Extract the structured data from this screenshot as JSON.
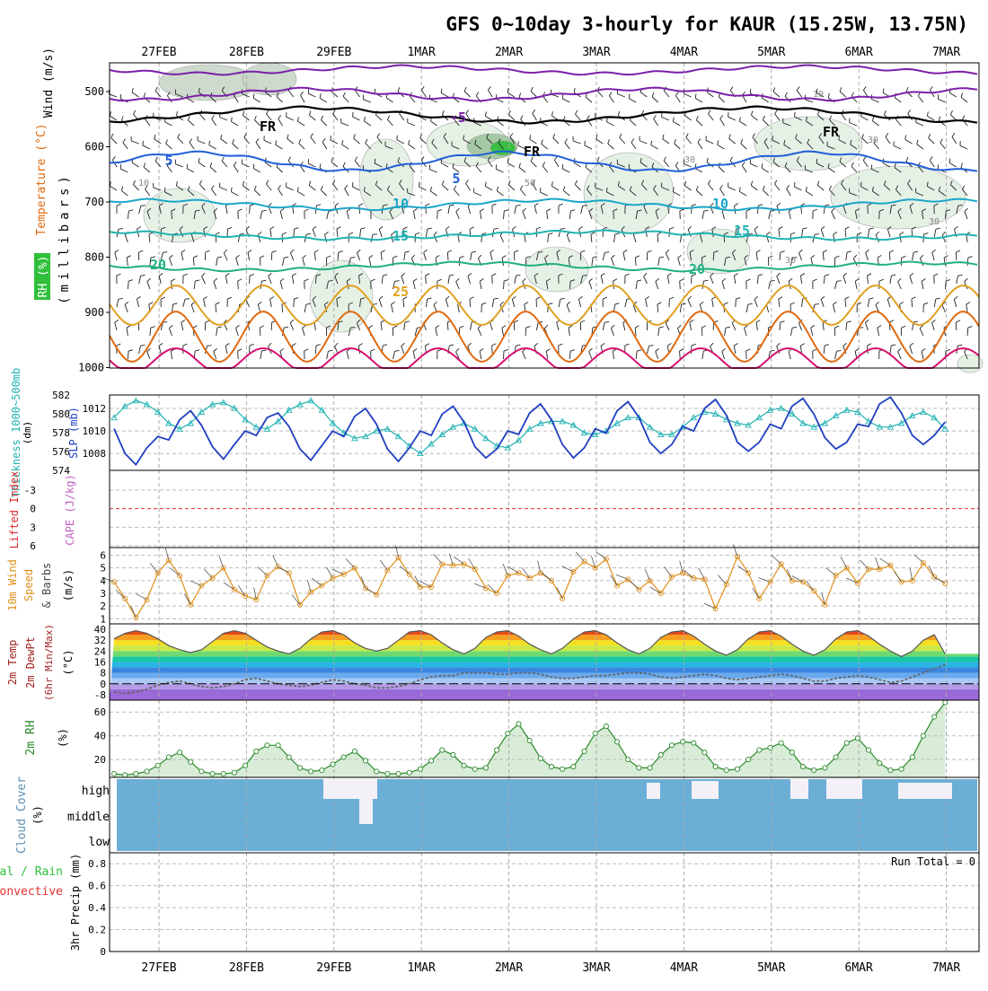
{
  "title": "GFS 0~10day 3-hourly for KAUR (15.25W, 13.75N)",
  "dates": [
    "27FEB",
    "28FEB",
    "29FEB",
    "1MAR",
    "2MAR",
    "3MAR",
    "4MAR",
    "5MAR",
    "6MAR",
    "7MAR"
  ],
  "colors": {
    "rh_green": "#2fbf3a",
    "sounding_temp_cold": "#7a1fa8",
    "sounding_temp_cool": "#1f5fd8",
    "sounding_temp_mild": "#1aa6c8",
    "sounding_temp_warm": "#e0a020",
    "sounding_temp_hot": "#e06a10",
    "sounding_temp_extreme": "#d81070",
    "slp": "#1f3fc0",
    "thickness": "#20b2b2",
    "lifted_index": "#e03030",
    "cape": "#c060c0",
    "wind10m": "#e0901a",
    "rh2m": "#2a8a2a",
    "cloud": "#6baed6",
    "precip_total": "#2fbf3a",
    "precip_conv": "#e03030"
  },
  "panels": {
    "sounding": {
      "ylabel_wind": "Wind (m/s)",
      "ylabel_temp": "Temperature (°C)",
      "ylabel_rh": "RH (%)",
      "ylabel_mb": "(millibars)",
      "yticks": [
        "500",
        "600",
        "700",
        "800",
        "900",
        "1000"
      ],
      "isotherm_labels": [
        {
          "text": "-5",
          "color": "#7a1fa8"
        },
        {
          "text": "FR",
          "color": "#000000"
        },
        {
          "text": "FR",
          "color": "#000000"
        },
        {
          "text": "FR",
          "color": "#000000"
        },
        {
          "text": "5",
          "color": "#1f5fd8"
        },
        {
          "text": "5",
          "color": "#1f5fd8"
        },
        {
          "text": "10",
          "color": "#1aa6c8"
        },
        {
          "text": "10",
          "color": "#1aa6c8"
        },
        {
          "text": "15",
          "color": "#20b2b2"
        },
        {
          "text": "15",
          "color": "#20b2b2"
        },
        {
          "text": "20",
          "color": "#20b080"
        },
        {
          "text": "20",
          "color": "#20b080"
        },
        {
          "text": "25",
          "color": "#e0a020"
        }
      ],
      "rh_labels": [
        "10",
        "10",
        "30",
        "30",
        "50",
        "30",
        "30"
      ]
    },
    "slp": {
      "ylabel_thick": "Thickness 1000~500mb",
      "ylabel_thick_unit": "(dm)",
      "ylabel_slp": "SLP (mb)",
      "thick_ticks": [
        "582",
        "580",
        "578",
        "576",
        "574"
      ],
      "slp_ticks": [
        "1012",
        "1010",
        "1008"
      ]
    },
    "li": {
      "ylabel_li": "Lifted Index",
      "ylabel_cape": "CAPE (J/kg)",
      "ticks": [
        "-3",
        "0",
        "3",
        "6"
      ]
    },
    "wind10m": {
      "ylabel_a": "10m Wind",
      "ylabel_b": "Speed",
      "ylabel_c": "& Barbs",
      "ylabel_unit": "(m/s)",
      "ticks": [
        "6",
        "5",
        "4",
        "3",
        "2",
        "1"
      ]
    },
    "temp2m": {
      "ylabel_a": "2m Temp",
      "ylabel_b": "2m DewPt",
      "ylabel_c": "(6hr Min/Max)",
      "ylabel_unit": "(°C)",
      "ticks": [
        "40",
        "32",
        "24",
        "16",
        "8",
        "0",
        "-8"
      ]
    },
    "rh2m": {
      "ylabel": "2m RH",
      "ylabel_unit": "(%)",
      "ticks": [
        "60",
        "40",
        "20"
      ]
    },
    "cloud": {
      "ylabel": "Cloud Cover",
      "ylabel_unit": "(%)",
      "levels": [
        "high",
        "middle",
        "low"
      ]
    },
    "precip": {
      "ylabel_total": "Total / Rain",
      "ylabel_conv": "Convective",
      "ylabel_unit": "3hr Precip (mm)",
      "ticks": [
        "0.8",
        "0.6",
        "0.4",
        "0.2",
        "0"
      ],
      "run_total": "Run Total = 0"
    }
  },
  "chart_data": [
    {
      "type": "line",
      "name": "SLP",
      "ylabel": "SLP (mb)",
      "ylim": [
        1006.5,
        1013.2
      ],
      "x_days": [
        0.0,
        0.125,
        0.25,
        0.375,
        0.5,
        0.625,
        0.75,
        0.875,
        1.0,
        1.125,
        1.25,
        1.375,
        1.5,
        1.625,
        1.75,
        1.875,
        2.0,
        2.125,
        2.25,
        2.375,
        2.5,
        2.625,
        2.75,
        2.875,
        3.0,
        3.125,
        3.25,
        3.375,
        3.5,
        3.625,
        3.75,
        3.875,
        4.0,
        4.125,
        4.25,
        4.375,
        4.5,
        4.625,
        4.75,
        4.875,
        5.0,
        5.125,
        5.25,
        5.375,
        5.5,
        5.625,
        5.75,
        5.875,
        6.0,
        6.125,
        6.25,
        6.375,
        6.5,
        6.625,
        6.75,
        6.875,
        7.0,
        7.125,
        7.25,
        7.375,
        7.5,
        7.625,
        7.75,
        7.875,
        8.0,
        8.125,
        8.25,
        8.375,
        8.5,
        8.625,
        8.75,
        8.875,
        9.0,
        9.125,
        9.25,
        9.375,
        9.5
      ],
      "values": [
        1010.2,
        1008.0,
        1007.0,
        1008.5,
        1009.5,
        1009.2,
        1011.0,
        1011.8,
        1010.5,
        1008.6,
        1007.5,
        1008.8,
        1010.0,
        1009.6,
        1011.2,
        1011.6,
        1010.4,
        1008.4,
        1007.4,
        1008.7,
        1010.0,
        1009.5,
        1011.3,
        1012.0,
        1010.6,
        1008.4,
        1007.3,
        1008.5,
        1010.0,
        1009.6,
        1011.5,
        1012.2,
        1010.8,
        1008.6,
        1007.6,
        1008.4,
        1010.0,
        1009.7,
        1011.6,
        1012.4,
        1011.0,
        1008.8,
        1007.6,
        1008.5,
        1010.2,
        1009.8,
        1011.8,
        1012.6,
        1011.2,
        1009.0,
        1008.0,
        1008.8,
        1010.4,
        1010.0,
        1012.0,
        1012.8,
        1011.4,
        1009.0,
        1008.2,
        1009.0,
        1010.6,
        1010.2,
        1012.2,
        1012.9,
        1011.5,
        1009.4,
        1008.4,
        1009.0,
        1010.6,
        1010.4,
        1012.4,
        1013.0,
        1011.6,
        1009.6,
        1008.8,
        1009.6,
        1010.8
      ]
    },
    {
      "type": "line",
      "name": "Thickness 1000~500mb",
      "ylabel": "(dm)",
      "ylim": [
        574,
        582
      ],
      "x_days": [
        0.0,
        0.125,
        0.25,
        0.375,
        0.5,
        0.625,
        0.75,
        0.875,
        1.0,
        1.125,
        1.25,
        1.375,
        1.5,
        1.625,
        1.75,
        1.875,
        2.0,
        2.125,
        2.25,
        2.375,
        2.5,
        2.625,
        2.75,
        2.875,
        3.0,
        3.125,
        3.25,
        3.375,
        3.5,
        3.625,
        3.75,
        3.875,
        4.0,
        4.125,
        4.25,
        4.375,
        4.5,
        4.625,
        4.75,
        4.875,
        5.0,
        5.125,
        5.25,
        5.375,
        5.5,
        5.625,
        5.75,
        5.875,
        6.0,
        6.125,
        6.25,
        6.375,
        6.5,
        6.625,
        6.75,
        6.875,
        7.0,
        7.125,
        7.25,
        7.375,
        7.5,
        7.625,
        7.75,
        7.875,
        8.0,
        8.125,
        8.25,
        8.375,
        8.5,
        8.625,
        8.75,
        8.875,
        9.0,
        9.125,
        9.25,
        9.375,
        9.5
      ],
      "values": [
        579.6,
        580.8,
        581.4,
        581.0,
        580.2,
        579.0,
        578.4,
        579.0,
        580.2,
        581.0,
        581.2,
        580.6,
        579.4,
        578.6,
        578.4,
        579.2,
        580.4,
        581.0,
        581.4,
        580.4,
        579.0,
        578.0,
        577.4,
        577.6,
        578.2,
        578.4,
        577.6,
        576.6,
        575.8,
        576.8,
        577.8,
        578.6,
        579.0,
        578.4,
        577.4,
        576.6,
        576.4,
        577.2,
        578.4,
        579.0,
        579.2,
        579.2,
        578.8,
        578.0,
        577.8,
        578.2,
        579.0,
        579.6,
        579.6,
        578.6,
        577.8,
        577.8,
        578.6,
        579.6,
        580.2,
        580.0,
        579.4,
        579.0,
        578.8,
        579.6,
        580.4,
        580.6,
        580.0,
        579.0,
        578.6,
        579.0,
        579.8,
        580.4,
        580.2,
        579.2,
        578.6,
        578.6,
        579.0,
        579.8,
        580.2,
        579.6,
        578.4
      ]
    },
    {
      "type": "line",
      "name": "10m Wind Speed",
      "ylabel": "(m/s)",
      "ylim": [
        0.6,
        6.6
      ],
      "x_days": [
        0.0,
        0.125,
        0.25,
        0.375,
        0.5,
        0.625,
        0.75,
        0.875,
        1.0,
        1.125,
        1.25,
        1.375,
        1.5,
        1.625,
        1.75,
        1.875,
        2.0,
        2.125,
        2.25,
        2.375,
        2.5,
        2.625,
        2.75,
        2.875,
        3.0,
        3.125,
        3.25,
        3.375,
        3.5,
        3.625,
        3.75,
        3.875,
        4.0,
        4.125,
        4.25,
        4.375,
        4.5,
        4.625,
        4.75,
        4.875,
        5.0,
        5.125,
        5.25,
        5.375,
        5.5,
        5.625,
        5.75,
        5.875,
        6.0,
        6.125,
        6.25,
        6.375,
        6.5,
        6.625,
        6.75,
        6.875,
        7.0,
        7.125,
        7.25,
        7.375,
        7.5,
        7.625,
        7.75,
        7.875,
        8.0,
        8.125,
        8.25,
        8.375,
        8.5,
        8.625,
        8.75,
        8.875,
        9.0,
        9.125,
        9.25,
        9.375,
        9.5
      ],
      "values": [
        3.9,
        2.6,
        1.1,
        2.5,
        4.6,
        5.6,
        4.4,
        2.1,
        3.6,
        4.2,
        5.0,
        3.3,
        2.8,
        2.5,
        4.4,
        5.1,
        4.6,
        2.1,
        3.1,
        3.6,
        4.2,
        4.5,
        5.0,
        3.4,
        2.9,
        4.8,
        5.8,
        4.5,
        3.5,
        3.5,
        5.3,
        5.2,
        5.3,
        4.9,
        3.4,
        3.0,
        4.4,
        4.6,
        4.2,
        4.6,
        4.0,
        2.6,
        4.7,
        5.5,
        5.0,
        5.7,
        3.6,
        4.1,
        3.3,
        4.0,
        3.0,
        4.3,
        4.6,
        4.2,
        4.1,
        1.8,
        3.7,
        5.9,
        4.6,
        2.6,
        3.9,
        5.3,
        4.0,
        3.9,
        3.2,
        2.1,
        4.4,
        5.0,
        3.8,
        4.9,
        4.9,
        5.2,
        3.9,
        4.0,
        5.4,
        4.3,
        3.8
      ]
    },
    {
      "type": "line",
      "name": "2m RH",
      "ylabel": "(%)",
      "ylim": [
        5,
        70
      ],
      "x_days": [
        0.0,
        0.125,
        0.25,
        0.375,
        0.5,
        0.625,
        0.75,
        0.875,
        1.0,
        1.125,
        1.25,
        1.375,
        1.5,
        1.625,
        1.75,
        1.875,
        2.0,
        2.125,
        2.25,
        2.375,
        2.5,
        2.625,
        2.75,
        2.875,
        3.0,
        3.125,
        3.25,
        3.375,
        3.5,
        3.625,
        3.75,
        3.875,
        4.0,
        4.125,
        4.25,
        4.375,
        4.5,
        4.625,
        4.75,
        4.875,
        5.0,
        5.125,
        5.25,
        5.375,
        5.5,
        5.625,
        5.75,
        5.875,
        6.0,
        6.125,
        6.25,
        6.375,
        6.5,
        6.625,
        6.75,
        6.875,
        7.0,
        7.125,
        7.25,
        7.375,
        7.5,
        7.625,
        7.75,
        7.875,
        8.0,
        8.125,
        8.25,
        8.375,
        8.5,
        8.625,
        8.75,
        8.875,
        9.0,
        9.125,
        9.25,
        9.375,
        9.5
      ],
      "values": [
        8,
        7,
        8,
        10,
        15,
        22,
        26,
        18,
        10,
        8,
        8,
        9,
        15,
        27,
        32,
        32,
        22,
        13,
        10,
        11,
        16,
        22,
        27,
        19,
        10,
        8,
        8,
        9,
        12,
        19,
        28,
        24,
        15,
        12,
        13,
        28,
        42,
        50,
        36,
        21,
        14,
        12,
        14,
        27,
        42,
        48,
        35,
        20,
        13,
        13,
        24,
        32,
        35,
        34,
        26,
        14,
        11,
        12,
        20,
        28,
        30,
        34,
        26,
        14,
        11,
        13,
        22,
        34,
        38,
        28,
        17,
        11,
        12,
        22,
        40,
        56,
        68
      ]
    },
    {
      "type": "line",
      "name": "2m Temp",
      "ylabel": "(°C)",
      "ylim": [
        -8,
        40
      ],
      "x_days": [
        0.0,
        0.125,
        0.25,
        0.375,
        0.5,
        0.625,
        0.75,
        0.875,
        1.0,
        1.125,
        1.25,
        1.375,
        1.5,
        1.625,
        1.75,
        1.875,
        2.0,
        2.125,
        2.25,
        2.375,
        2.5,
        2.625,
        2.75,
        2.875,
        3.0,
        3.125,
        3.25,
        3.375,
        3.5,
        3.625,
        3.75,
        3.875,
        4.0,
        4.125,
        4.25,
        4.375,
        4.5,
        4.625,
        4.75,
        4.875,
        5.0,
        5.125,
        5.25,
        5.375,
        5.5,
        5.625,
        5.75,
        5.875,
        6.0,
        6.125,
        6.25,
        6.375,
        6.5,
        6.625,
        6.75,
        6.875,
        7.0,
        7.125,
        7.25,
        7.375,
        7.5,
        7.625,
        7.75,
        7.875,
        8.0,
        8.125,
        8.25,
        8.375,
        8.5,
        8.625,
        8.75,
        8.875,
        9.0,
        9.125,
        9.25,
        9.375,
        9.5
      ],
      "values": [
        33,
        37,
        39,
        37,
        33,
        28,
        25,
        23,
        25,
        31,
        37,
        39,
        37,
        32,
        27,
        24,
        22,
        26,
        33,
        38,
        39,
        36,
        30,
        26,
        24,
        26,
        32,
        38,
        39,
        36,
        30,
        25,
        22,
        26,
        34,
        38,
        39,
        35,
        29,
        25,
        22,
        26,
        33,
        38,
        39,
        36,
        30,
        25,
        22,
        26,
        34,
        38,
        39,
        35,
        29,
        24,
        21,
        25,
        33,
        38,
        39,
        35,
        29,
        24,
        21,
        25,
        33,
        38,
        39,
        35,
        29,
        24,
        20,
        24,
        32,
        36,
        22
      ]
    },
    {
      "type": "line",
      "name": "2m DewPt",
      "ylabel": "(°C)",
      "ylim": [
        -8,
        40
      ],
      "x_days": [
        0.0,
        0.125,
        0.25,
        0.375,
        0.5,
        0.625,
        0.75,
        0.875,
        1.0,
        1.125,
        1.25,
        1.375,
        1.5,
        1.625,
        1.75,
        1.875,
        2.0,
        2.125,
        2.25,
        2.375,
        2.5,
        2.625,
        2.75,
        2.875,
        3.0,
        3.125,
        3.25,
        3.375,
        3.5,
        3.625,
        3.75,
        3.875,
        4.0,
        4.125,
        4.25,
        4.375,
        4.5,
        4.625,
        4.75,
        4.875,
        5.0,
        5.125,
        5.25,
        5.375,
        5.5,
        5.625,
        5.75,
        5.875,
        6.0,
        6.125,
        6.25,
        6.375,
        6.5,
        6.625,
        6.75,
        6.875,
        7.0,
        7.125,
        7.25,
        7.375,
        7.5,
        7.625,
        7.75,
        7.875,
        8.0,
        8.125,
        8.25,
        8.375,
        8.5,
        8.625,
        8.75,
        8.875,
        9.0,
        9.125,
        9.25,
        9.375,
        9.5
      ],
      "values": [
        -6,
        -7,
        -6,
        -4,
        -1,
        1,
        2,
        0,
        -2,
        -3,
        -2,
        0,
        3,
        4,
        2,
        0,
        -1,
        -2,
        -1,
        1,
        3,
        2,
        0,
        -1,
        -3,
        -3,
        -2,
        0,
        3,
        5,
        6,
        6,
        8,
        8,
        8,
        7,
        7,
        8,
        8,
        7,
        5,
        4,
        4,
        5,
        6,
        6,
        7,
        8,
        8,
        7,
        5,
        4,
        5,
        6,
        7,
        6,
        4,
        3,
        4,
        5,
        6,
        7,
        6,
        4,
        2,
        2,
        4,
        5,
        6,
        5,
        3,
        1,
        2,
        5,
        8,
        11,
        14
      ]
    },
    {
      "type": "bar",
      "name": "3hr Precip",
      "ylabel": "3hr Precip (mm)",
      "ylim": [
        0,
        0.9
      ],
      "values": []
    }
  ]
}
